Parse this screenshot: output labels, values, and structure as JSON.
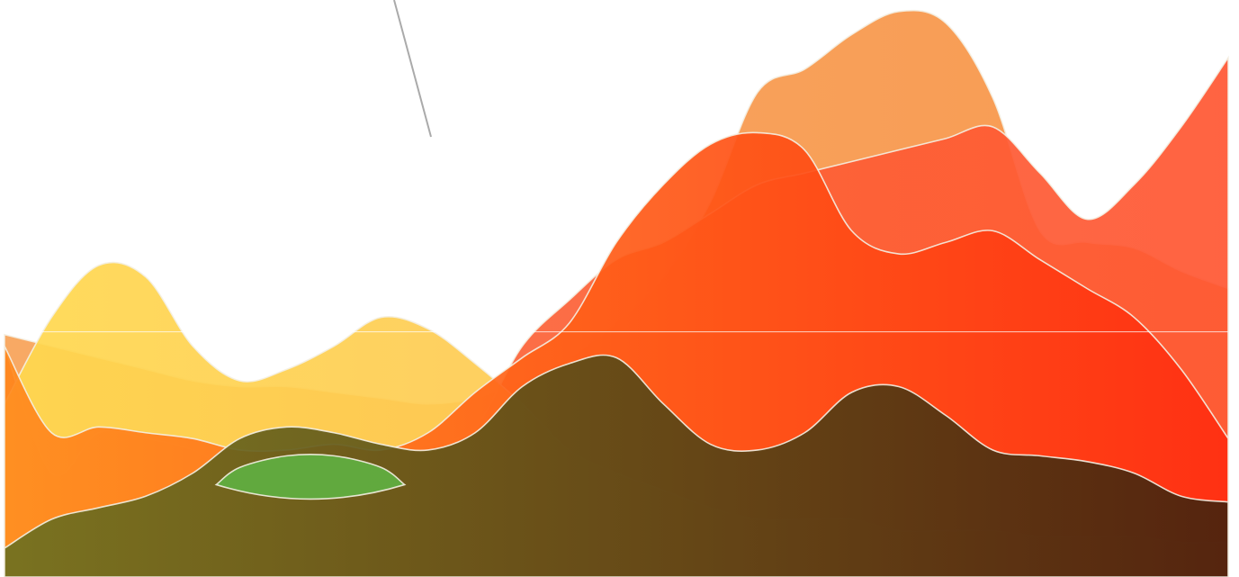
{
  "chart_data": {
    "type": "area",
    "title": "",
    "xlabel": "",
    "ylabel": "",
    "x": [
      0,
      1,
      2,
      3,
      4,
      5,
      6,
      7,
      8,
      9,
      10,
      11,
      12,
      13,
      14,
      15,
      16,
      17,
      18,
      19,
      20,
      21,
      22,
      23,
      24,
      25,
      26
    ],
    "xlim": [
      0,
      26
    ],
    "ylim": [
      0,
      100
    ],
    "grid": false,
    "legend": "none",
    "overlay": true,
    "reference_line": {
      "y": 42.5,
      "color": "#ffffff"
    },
    "stroke_color": "#f4efe3",
    "series": [
      {
        "name": "",
        "fill": [
          "#f7a257",
          "#f89244"
        ],
        "values": [
          42,
          40,
          38,
          36,
          34,
          33,
          33,
          32,
          31,
          30,
          31,
          34,
          38,
          44,
          52,
          65,
          84,
          88,
          94,
          98,
          96,
          83,
          60,
          58,
          57,
          53,
          50
        ]
      },
      {
        "name": "",
        "fill": [
          "#fa6a3a",
          "#ff5632"
        ],
        "values": [
          40,
          18,
          25,
          24,
          22,
          18,
          18,
          20,
          22,
          23,
          26,
          40,
          48,
          55,
          58,
          63,
          68,
          70,
          72,
          74,
          76,
          78,
          70,
          62,
          68,
          78,
          90
        ]
      },
      {
        "name": "",
        "fill": [
          "#ffd84e",
          "#fdb85a"
        ],
        "values": [
          30,
          45,
          54,
          52,
          40,
          34,
          36,
          40,
          45,
          43,
          37,
          30,
          22,
          18,
          15,
          12,
          10,
          10,
          10,
          8,
          8,
          8,
          7,
          7,
          7,
          6,
          6
        ]
      },
      {
        "name": "",
        "fill": [
          "#ff8a1e",
          "#ff2d10"
        ],
        "values": [
          40,
          25,
          26,
          25,
          24,
          22,
          22,
          23,
          22,
          25,
          32,
          38,
          44,
          58,
          68,
          75,
          77,
          74,
          60,
          56,
          58,
          60,
          55,
          50,
          45,
          36,
          24
        ]
      },
      {
        "name": "",
        "fill": [
          "#6e7020",
          "#47230e"
        ],
        "values": [
          5,
          10,
          12,
          14,
          18,
          24,
          26,
          25,
          23,
          22,
          25,
          33,
          37,
          38,
          30,
          23,
          22,
          25,
          32,
          33,
          28,
          22,
          21,
          20,
          18,
          14,
          13
        ]
      },
      {
        "name": "",
        "fill": [
          "#60ad40",
          "#60ad40"
        ],
        "opacity": 0.95,
        "values": [
          0,
          0,
          0,
          0,
          0,
          19,
          21,
          21,
          19,
          0,
          0,
          0,
          0,
          0,
          0,
          0,
          0,
          0,
          0,
          0,
          0,
          0,
          0,
          0,
          0,
          0,
          0
        ]
      }
    ]
  }
}
